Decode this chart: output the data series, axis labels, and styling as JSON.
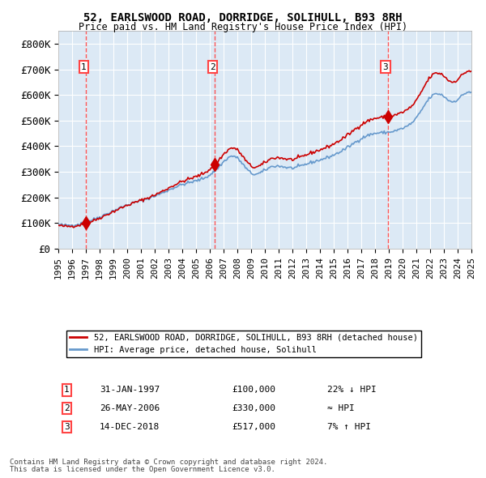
{
  "title1": "52, EARLSWOOD ROAD, DORRIDGE, SOLIHULL, B93 8RH",
  "title2": "Price paid vs. HM Land Registry's House Price Index (HPI)",
  "background_color": "#dce9f5",
  "plot_bg_color": "#dce9f5",
  "red_line_color": "#cc0000",
  "blue_line_color": "#6699cc",
  "sale_marker_color": "#cc0000",
  "vline_color": "#ff4444",
  "legend_label_red": "52, EARLSWOOD ROAD, DORRIDGE, SOLIHULL, B93 8RH (detached house)",
  "legend_label_blue": "HPI: Average price, detached house, Solihull",
  "sales": [
    {
      "num": 1,
      "date": "1997-01-31",
      "price": 100000,
      "label": "31-JAN-1997",
      "price_str": "£100,000",
      "hpi_note": "22% ↓ HPI"
    },
    {
      "num": 2,
      "date": "2006-05-26",
      "price": 330000,
      "label": "26-MAY-2006",
      "price_str": "£330,000",
      "hpi_note": "≈ HPI"
    },
    {
      "num": 3,
      "date": "2018-12-14",
      "price": 517000,
      "label": "14-DEC-2018",
      "price_str": "£517,000",
      "hpi_note": "7% ↑ HPI"
    }
  ],
  "footer1": "Contains HM Land Registry data © Crown copyright and database right 2024.",
  "footer2": "This data is licensed under the Open Government Licence v3.0.",
  "ylim": [
    0,
    850000
  ],
  "yticks": [
    0,
    100000,
    200000,
    300000,
    400000,
    500000,
    600000,
    700000,
    800000
  ],
  "ytick_labels": [
    "£0",
    "£100K",
    "£200K",
    "£300K",
    "£400K",
    "£500K",
    "£600K",
    "£700K",
    "£800K"
  ],
  "xstart": 1995,
  "xend": 2025
}
